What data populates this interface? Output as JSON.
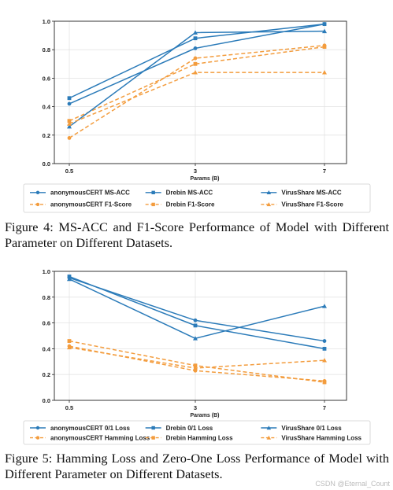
{
  "figures": [
    {
      "caption": "Figure 4: MS-ACC and F1-Score Performance of Model with Different Parameter on Different Datasets.",
      "chart_data": {
        "type": "line",
        "title": "",
        "xlabel": "Params (B)",
        "ylabel": "",
        "x_scale": "categorical",
        "categories": [
          "0.5",
          "3",
          "7"
        ],
        "ylim": [
          0.0,
          1.0
        ],
        "yticks": [
          "0.0",
          "0.2",
          "0.4",
          "0.6",
          "0.8",
          "1.0"
        ],
        "grid": true,
        "legend_position": "bottom",
        "series": [
          {
            "name": "anonymousCERT MS-ACC",
            "values": [
              0.42,
              0.81,
              0.98
            ],
            "color": "#2b7bb9",
            "style": "solid",
            "marker": "circle"
          },
          {
            "name": "anonymousCERT F1-Score",
            "values": [
              0.18,
              0.74,
              0.83
            ],
            "color": "#f39c3d",
            "style": "dashed",
            "marker": "circle"
          },
          {
            "name": "Drebin MS-ACC",
            "values": [
              0.46,
              0.88,
              0.98
            ],
            "color": "#2b7bb9",
            "style": "solid",
            "marker": "square"
          },
          {
            "name": "Drebin F1-Score",
            "values": [
              0.3,
              0.7,
              0.82
            ],
            "color": "#f39c3d",
            "style": "dashed",
            "marker": "square"
          },
          {
            "name": "VirusShare MS-ACC",
            "values": [
              0.26,
              0.92,
              0.93
            ],
            "color": "#2b7bb9",
            "style": "solid",
            "marker": "triangle"
          },
          {
            "name": "VirusShare F1-Score",
            "values": [
              0.28,
              0.64,
              0.64
            ],
            "color": "#f39c3d",
            "style": "dashed",
            "marker": "triangle"
          }
        ]
      }
    },
    {
      "caption": "Figure 5: Hamming Loss and Zero-One Loss Performance of Model with Different Parameter on Different Datasets.",
      "chart_data": {
        "type": "line",
        "title": "",
        "xlabel": "Params (B)",
        "ylabel": "",
        "x_scale": "categorical",
        "categories": [
          "0.5",
          "3",
          "7"
        ],
        "ylim": [
          0.0,
          1.0
        ],
        "yticks": [
          "0.0",
          "0.2",
          "0.4",
          "0.6",
          "0.8",
          "1.0"
        ],
        "grid": true,
        "legend_position": "bottom",
        "series": [
          {
            "name": "anonymousCERT 0/1 Loss",
            "values": [
              0.95,
              0.62,
              0.46
            ],
            "color": "#2b7bb9",
            "style": "solid",
            "marker": "circle"
          },
          {
            "name": "anonymousCERT Hamming Loss",
            "values": [
              0.42,
              0.23,
              0.15
            ],
            "color": "#f39c3d",
            "style": "dashed",
            "marker": "circle"
          },
          {
            "name": "Drebin 0/1 Loss",
            "values": [
              0.96,
              0.58,
              0.4
            ],
            "color": "#2b7bb9",
            "style": "solid",
            "marker": "square"
          },
          {
            "name": "Drebin Hamming Loss",
            "values": [
              0.46,
              0.27,
              0.14
            ],
            "color": "#f39c3d",
            "style": "dashed",
            "marker": "square"
          },
          {
            "name": "VirusShare 0/1 Loss",
            "values": [
              0.94,
              0.48,
              0.73
            ],
            "color": "#2b7bb9",
            "style": "solid",
            "marker": "triangle"
          },
          {
            "name": "VirusShare Hamming Loss",
            "values": [
              0.41,
              0.25,
              0.31
            ],
            "color": "#f39c3d",
            "style": "dashed",
            "marker": "triangle"
          }
        ]
      }
    }
  ],
  "watermark": "CSDN @Eternal_Count"
}
